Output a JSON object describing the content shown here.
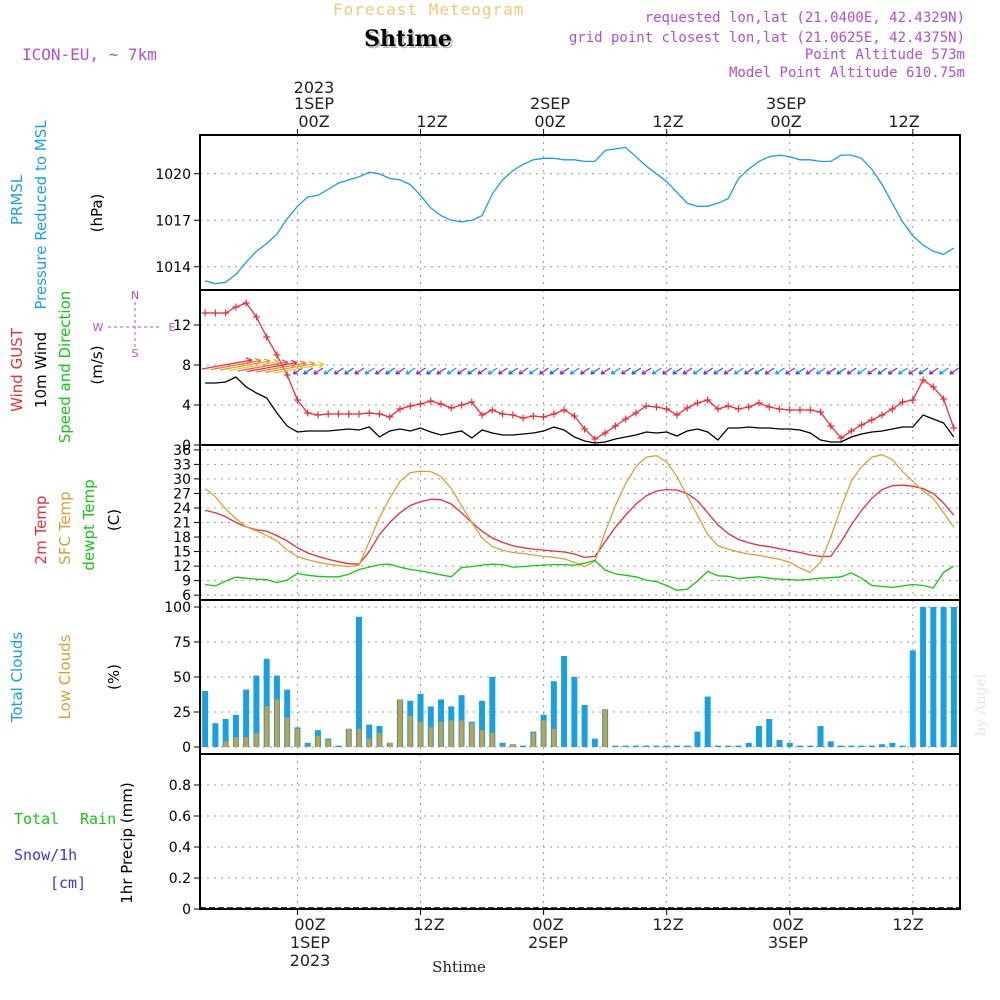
{
  "header": {
    "supertitle": "Forecast Meteogram",
    "title": "Shtime",
    "model": "ICON-EU, ~ 7km",
    "requested": "requested lon,lat (21.0400E, 42.4329N)",
    "gridpoint": "grid point closest lon,lat (21.0625E, 42.4375N)",
    "point_alt": "Point Altitude 573m",
    "model_alt": "Model Point Altitude 610.75m"
  },
  "footer": {
    "place": "Shtime",
    "watermark": "by Angel"
  },
  "colors": {
    "pressure": "#1a9fe0",
    "gust": "#e8303a",
    "wind": "#000000",
    "temp": "#e8303a",
    "sfc": "#d9a03a",
    "dewpt": "#18c418",
    "total_cloud": "#1a9fe0",
    "low_cloud": "#c8a040",
    "rain": "#18c418",
    "snow": "#3838e8",
    "model": "#b050d0",
    "title_gold": "#f0c878"
  },
  "time_axis": {
    "top_ticks": [
      "00Z",
      "12Z",
      "00Z",
      "12Z",
      "00Z",
      "12Z"
    ],
    "top_dates": [
      "1SEP",
      "",
      "2SEP",
      "",
      "3SEP",
      ""
    ],
    "top_year": "2023",
    "bottom_ticks": [
      "00Z",
      "12Z",
      "00Z",
      "12Z",
      "00Z",
      "12Z"
    ],
    "bottom_dates": [
      "1SEP",
      "",
      "2SEP",
      "",
      "3SEP",
      ""
    ],
    "bottom_year": "2023"
  },
  "labels": {
    "p1a": "PRMSL",
    "p1b": "Pressure Reduced to MSL",
    "p1c": "(hPa)",
    "p2a": "Wind GUST",
    "p2b": "10m Wind",
    "p2c": "Speed and Direction",
    "p2d": "(m/s)",
    "p3a": "2m Temp",
    "p3b": "SFC Temp",
    "p3c": "dewpt Temp",
    "p3d": "(C)",
    "p4a": "Total Clouds",
    "p4b": "Low Clouds",
    "p4c": "(%)",
    "p5a": "Total",
    "p5b": "Rain",
    "p5c": "Snow/1h",
    "p5d": "[cm]",
    "p5e": "1hr Precip (mm)",
    "compass_n": "N",
    "compass_s": "S",
    "compass_w": "W",
    "compass_e": "E"
  },
  "chart_data": [
    {
      "type": "line",
      "title": "PRMSL Pressure Reduced to MSL",
      "ylabel": "(hPa)",
      "x_hours": [
        -9,
        -8,
        -7,
        -6,
        -5,
        -4,
        -3,
        -2,
        -1,
        0,
        1,
        2,
        3,
        4,
        5,
        6,
        7,
        8,
        9,
        10,
        11,
        12,
        13,
        14,
        15,
        16,
        17,
        18,
        19,
        20,
        21,
        22,
        23,
        24,
        25,
        26,
        27,
        28,
        29,
        30,
        31,
        32,
        33,
        34,
        35,
        36,
        37,
        38,
        39,
        40,
        41,
        42,
        43,
        44,
        45,
        46,
        47,
        48,
        49,
        50,
        51,
        52,
        53,
        54,
        55,
        56,
        57,
        58,
        59,
        60,
        61,
        62,
        63,
        64
      ],
      "series": [
        {
          "name": "PRMSL",
          "values": [
            1013.1,
            1012.9,
            1013.0,
            1013.5,
            1014.3,
            1015.0,
            1015.5,
            1016.1,
            1017.1,
            1017.9,
            1018.5,
            1018.6,
            1019.0,
            1019.4,
            1019.6,
            1019.8,
            1020.1,
            1020.0,
            1019.7,
            1019.6,
            1019.3,
            1018.6,
            1017.8,
            1017.3,
            1017.0,
            1016.9,
            1017.0,
            1017.3,
            1018.7,
            1019.6,
            1020.2,
            1020.6,
            1020.9,
            1021.0,
            1021.0,
            1020.9,
            1020.9,
            1020.8,
            1020.8,
            1021.5,
            1021.6,
            1021.7,
            1021.1,
            1020.5,
            1020.0,
            1019.5,
            1018.8,
            1018.1,
            1017.9,
            1017.9,
            1018.1,
            1018.4,
            1019.7,
            1020.3,
            1020.8,
            1021.1,
            1021.2,
            1021.1,
            1020.9,
            1020.9,
            1020.8,
            1020.8,
            1021.2,
            1021.2,
            1021.0,
            1020.3,
            1019.3,
            1018.1,
            1016.9,
            1016.0,
            1015.4,
            1015.0,
            1014.8,
            1015.2
          ]
        }
      ],
      "ylim": [
        1012.5,
        1022.5
      ],
      "yticks": [
        1014,
        1017,
        1020
      ]
    },
    {
      "type": "line",
      "title": "Wind GUST / 10m Wind Speed and Direction",
      "ylabel": "(m/s)",
      "x_hours": [
        -9,
        -8,
        -7,
        -6,
        -5,
        -4,
        -3,
        -2,
        -1,
        0,
        1,
        2,
        3,
        4,
        5,
        6,
        7,
        8,
        9,
        10,
        11,
        12,
        13,
        14,
        15,
        16,
        17,
        18,
        19,
        20,
        21,
        22,
        23,
        24,
        25,
        26,
        27,
        28,
        29,
        30,
        31,
        32,
        33,
        34,
        35,
        36,
        37,
        38,
        39,
        40,
        41,
        42,
        43,
        44,
        45,
        46,
        47,
        48,
        49,
        50,
        51,
        52,
        53,
        54,
        55,
        56,
        57,
        58,
        59,
        60,
        61,
        62,
        63,
        64
      ],
      "series": [
        {
          "name": "Wind GUST",
          "values": [
            13.2,
            13.2,
            13.2,
            13.8,
            14.2,
            12.8,
            10.8,
            9.0,
            7.0,
            4.5,
            3.2,
            3.0,
            3.1,
            3.1,
            3.1,
            3.1,
            3.2,
            3.1,
            2.8,
            3.6,
            3.9,
            4.1,
            4.4,
            4.1,
            3.7,
            4.0,
            4.3,
            3.0,
            3.5,
            3.1,
            3.0,
            2.7,
            2.9,
            2.8,
            3.1,
            3.5,
            2.9,
            1.6,
            0.6,
            1.2,
            1.9,
            2.6,
            3.2,
            3.9,
            3.8,
            3.6,
            3.0,
            3.7,
            4.2,
            4.5,
            3.6,
            3.9,
            3.6,
            3.8,
            4.2,
            3.8,
            3.6,
            3.5,
            3.5,
            3.5,
            3.3,
            1.9,
            0.7,
            1.4,
            2.0,
            2.5,
            3.0,
            3.6,
            4.3,
            4.5,
            6.5,
            5.8,
            4.6,
            1.7
          ]
        },
        {
          "name": "10m Wind",
          "values": [
            6.2,
            6.2,
            6.3,
            6.8,
            5.8,
            5.2,
            4.7,
            3.2,
            1.9,
            1.3,
            1.4,
            1.4,
            1.4,
            1.5,
            1.6,
            1.5,
            1.8,
            0.8,
            1.4,
            1.6,
            1.4,
            1.7,
            1.3,
            1.0,
            1.2,
            1.4,
            0.7,
            1.5,
            1.2,
            1.0,
            1.0,
            1.1,
            1.2,
            1.4,
            1.8,
            1.5,
            0.8,
            0.4,
            0.2,
            0.3,
            0.6,
            0.8,
            1.0,
            1.3,
            1.2,
            1.3,
            0.9,
            1.4,
            1.6,
            1.3,
            0.5,
            1.7,
            1.7,
            1.8,
            1.7,
            1.7,
            1.6,
            1.6,
            1.5,
            1.2,
            0.5,
            0.3,
            0.3,
            0.8,
            1.1,
            1.3,
            1.4,
            1.6,
            1.8,
            1.8,
            3.0,
            2.6,
            2.2,
            0.8
          ]
        }
      ],
      "ylim": [
        0,
        15.5
      ],
      "yticks": [
        0,
        4,
        8,
        12
      ]
    },
    {
      "type": "line",
      "title": "2m Temp / SFC Temp / dewpt Temp",
      "ylabel": "(C)",
      "x_hours": [
        -9,
        -8,
        -7,
        -6,
        -5,
        -4,
        -3,
        -2,
        -1,
        0,
        1,
        2,
        3,
        4,
        5,
        6,
        7,
        8,
        9,
        10,
        11,
        12,
        13,
        14,
        15,
        16,
        17,
        18,
        19,
        20,
        21,
        22,
        23,
        24,
        25,
        26,
        27,
        28,
        29,
        30,
        31,
        32,
        33,
        34,
        35,
        36,
        37,
        38,
        39,
        40,
        41,
        42,
        43,
        44,
        45,
        46,
        47,
        48,
        49,
        50,
        51,
        52,
        53,
        54,
        55,
        56,
        57,
        58,
        59,
        60,
        61,
        62,
        63,
        64
      ],
      "series": [
        {
          "name": "2m Temp",
          "values": [
            23.5,
            23.0,
            22.2,
            21.0,
            20.1,
            19.5,
            19.2,
            18.3,
            17.2,
            15.8,
            14.7,
            14.0,
            13.4,
            12.9,
            12.5,
            12.4,
            15.0,
            18.5,
            21.0,
            23.0,
            24.5,
            25.3,
            25.8,
            25.7,
            24.8,
            23.0,
            21.0,
            19.2,
            17.8,
            16.9,
            16.2,
            15.8,
            15.5,
            15.3,
            15.1,
            14.9,
            14.5,
            13.8,
            14.0,
            17.0,
            20.0,
            22.5,
            24.8,
            26.5,
            27.5,
            27.8,
            27.7,
            27.0,
            25.5,
            23.0,
            20.5,
            18.7,
            17.5,
            16.8,
            16.3,
            16.0,
            15.6,
            15.2,
            14.8,
            14.3,
            14.0,
            14.0,
            17.0,
            20.5,
            23.5,
            26.0,
            27.8,
            28.6,
            28.7,
            28.5,
            28.0,
            27.0,
            25.0,
            22.5
          ]
        },
        {
          "name": "SFC Temp",
          "values": [
            28.0,
            26.3,
            23.8,
            21.8,
            20.1,
            19.3,
            18.3,
            17.2,
            15.3,
            14.0,
            13.3,
            12.8,
            12.4,
            12.1,
            11.9,
            12.2,
            17.0,
            22.0,
            26.0,
            29.5,
            31.3,
            31.6,
            31.5,
            30.5,
            28.0,
            24.5,
            21.0,
            17.8,
            16.0,
            15.3,
            14.8,
            14.6,
            14.3,
            14.0,
            13.8,
            13.5,
            12.8,
            11.9,
            13.0,
            19.0,
            24.5,
            29.0,
            32.5,
            34.5,
            34.8,
            33.5,
            30.5,
            26.5,
            22.5,
            18.5,
            16.2,
            15.5,
            14.9,
            14.5,
            14.2,
            13.8,
            13.4,
            12.8,
            11.6,
            10.7,
            12.8,
            18.0,
            24.0,
            29.5,
            32.5,
            34.5,
            35.0,
            34.0,
            31.5,
            29.5,
            27.5,
            26.0,
            23.0,
            20.0
          ]
        },
        {
          "name": "dewpt Temp",
          "values": [
            8.2,
            7.9,
            8.9,
            9.7,
            9.5,
            9.3,
            9.2,
            8.6,
            9.1,
            10.5,
            10.1,
            9.9,
            9.8,
            9.8,
            10.3,
            11.3,
            11.8,
            12.3,
            12.4,
            11.8,
            11.3,
            11.0,
            10.6,
            10.2,
            9.8,
            11.7,
            11.9,
            12.2,
            12.4,
            12.3,
            11.8,
            11.9,
            12.1,
            12.2,
            12.3,
            12.3,
            12.2,
            12.6,
            13.2,
            11.2,
            10.4,
            10.1,
            9.8,
            9.1,
            8.8,
            8.0,
            7.0,
            7.2,
            8.9,
            10.9,
            10.0,
            9.9,
            9.4,
            9.6,
            9.8,
            9.5,
            9.3,
            9.2,
            9.1,
            9.3,
            9.5,
            9.6,
            9.8,
            10.6,
            9.5,
            8.0,
            7.8,
            7.6,
            7.9,
            8.2,
            8.0,
            7.5,
            10.7,
            12.0
          ]
        }
      ],
      "ylim": [
        5,
        37
      ],
      "yticks": [
        6,
        9,
        12,
        15,
        18,
        21,
        24,
        27,
        30,
        33,
        36
      ]
    },
    {
      "type": "bar",
      "title": "Total Clouds / Low Clouds",
      "ylabel": "(%)",
      "x_hours": [
        -9,
        -8,
        -7,
        -6,
        -5,
        -4,
        -3,
        -2,
        -1,
        0,
        1,
        2,
        3,
        4,
        5,
        6,
        7,
        8,
        9,
        10,
        11,
        12,
        13,
        14,
        15,
        16,
        17,
        18,
        19,
        20,
        21,
        22,
        23,
        24,
        25,
        26,
        27,
        28,
        29,
        30,
        31,
        32,
        33,
        34,
        35,
        36,
        37,
        38,
        39,
        40,
        41,
        42,
        43,
        44,
        45,
        46,
        47,
        48,
        49,
        50,
        51,
        52,
        53,
        54,
        55,
        56,
        57,
        58,
        59,
        60,
        61,
        62,
        63,
        64
      ],
      "series": [
        {
          "name": "Total Clouds",
          "values": [
            40,
            17,
            20,
            23,
            41,
            51,
            63,
            51,
            41,
            14,
            3,
            12,
            6,
            1,
            13,
            93,
            16,
            15,
            3,
            34,
            33,
            38,
            29,
            34,
            29,
            37,
            18,
            33,
            50,
            3,
            2,
            1,
            11,
            23,
            47,
            65,
            50,
            30,
            6,
            27,
            1,
            1,
            1,
            1,
            1,
            1,
            1,
            1,
            11,
            36,
            1,
            1,
            1,
            3,
            15,
            20,
            5,
            3,
            1,
            1,
            15,
            4,
            1,
            1,
            1,
            1,
            2,
            3,
            1,
            69,
            100,
            100,
            100,
            100
          ]
        },
        {
          "name": "Low Clouds",
          "values": [
            0,
            0,
            4,
            7,
            7,
            10,
            29,
            34,
            21,
            13,
            1,
            8,
            5,
            0,
            13,
            13,
            6,
            10,
            3,
            34,
            22,
            18,
            14,
            18,
            19,
            19,
            17,
            12,
            10,
            1,
            2,
            0,
            10,
            19,
            13,
            0,
            0,
            0,
            0,
            27,
            0,
            0,
            0,
            0,
            0,
            0,
            0,
            0,
            0,
            0,
            0,
            0,
            0,
            0,
            0,
            0,
            0,
            0,
            0,
            0,
            0,
            0,
            0,
            0,
            0,
            0,
            0,
            0,
            0,
            0,
            0,
            0,
            0,
            0
          ]
        }
      ],
      "ylim": [
        -5,
        105
      ],
      "yticks": [
        0,
        25,
        50,
        75,
        100
      ]
    },
    {
      "type": "bar",
      "title": "Total Rain / Snow/1h",
      "ylabel": "1hr Precip (mm)",
      "x_hours": [
        -9,
        -8,
        -7,
        -6,
        -5,
        -4,
        -3,
        -2,
        -1,
        0,
        1,
        2,
        3,
        4,
        5,
        6,
        7,
        8,
        9,
        10,
        11,
        12,
        13,
        14,
        15,
        16,
        17,
        18,
        19,
        20,
        21,
        22,
        23,
        24,
        25,
        26,
        27,
        28,
        29,
        30,
        31,
        32,
        33,
        34,
        35,
        36,
        37,
        38,
        39,
        40,
        41,
        42,
        43,
        44,
        45,
        46,
        47,
        48,
        49,
        50,
        51,
        52,
        53,
        54,
        55,
        56,
        57,
        58,
        59,
        60,
        61,
        62,
        63,
        64
      ],
      "series": [
        {
          "name": "Total Rain",
          "values": [
            0,
            0,
            0,
            0,
            0,
            0,
            0,
            0,
            0,
            0,
            0,
            0,
            0,
            0,
            0,
            0,
            0,
            0,
            0,
            0,
            0,
            0,
            0,
            0,
            0,
            0,
            0,
            0,
            0,
            0,
            0,
            0,
            0,
            0,
            0,
            0,
            0,
            0,
            0,
            0,
            0,
            0,
            0,
            0,
            0,
            0,
            0,
            0,
            0,
            0,
            0,
            0,
            0,
            0,
            0,
            0,
            0,
            0,
            0,
            0,
            0,
            0,
            0,
            0,
            0,
            0,
            0,
            0,
            0,
            0,
            0,
            0,
            0,
            0
          ]
        }
      ],
      "ylim": [
        0,
        1
      ],
      "yticks": [
        0,
        0.2,
        0.4,
        0.6,
        0.8
      ]
    }
  ]
}
